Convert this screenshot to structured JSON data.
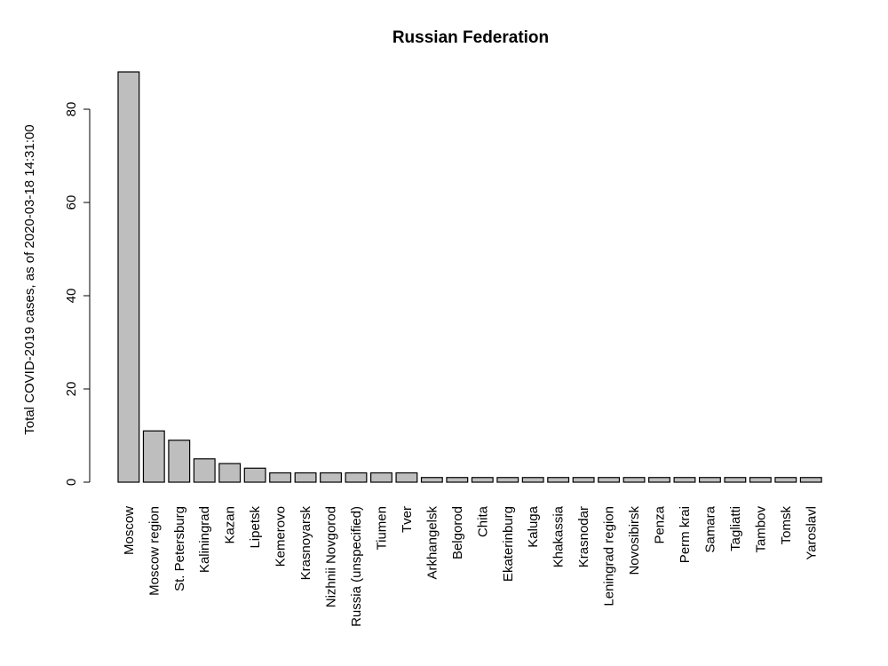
{
  "chart_data": {
    "type": "bar",
    "title": "Russian Federation",
    "xlabel": "",
    "ylabel": "Total COVID-2019 cases, as of 2020-03-18 14:31:00",
    "ylim": [
      0,
      88
    ],
    "yticks": [
      0,
      20,
      40,
      60,
      80
    ],
    "categories": [
      "Moscow",
      "Moscow region",
      "St. Petersburg",
      "Kaliningrad",
      "Kazan",
      "Lipetsk",
      "Kemerovo",
      "Krasnoyarsk",
      "Nizhnii Novgorod",
      "Russia (unspecified)",
      "Tiumen",
      "Tver",
      "Arkhangelsk",
      "Belgorod",
      "Chita",
      "Ekaterinburg",
      "Kaluga",
      "Khakassia",
      "Krasnodar",
      "Leningrad region",
      "Novosibirsk",
      "Penza",
      "Perm krai",
      "Samara",
      "Tagliatti",
      "Tambov",
      "Tomsk",
      "Yaroslavl"
    ],
    "values": [
      88,
      11,
      9,
      5,
      4,
      3,
      2,
      2,
      2,
      2,
      2,
      2,
      1,
      1,
      1,
      1,
      1,
      1,
      1,
      1,
      1,
      1,
      1,
      1,
      1,
      1,
      1,
      1
    ],
    "bar_color": "#bebebe",
    "grid": false
  }
}
